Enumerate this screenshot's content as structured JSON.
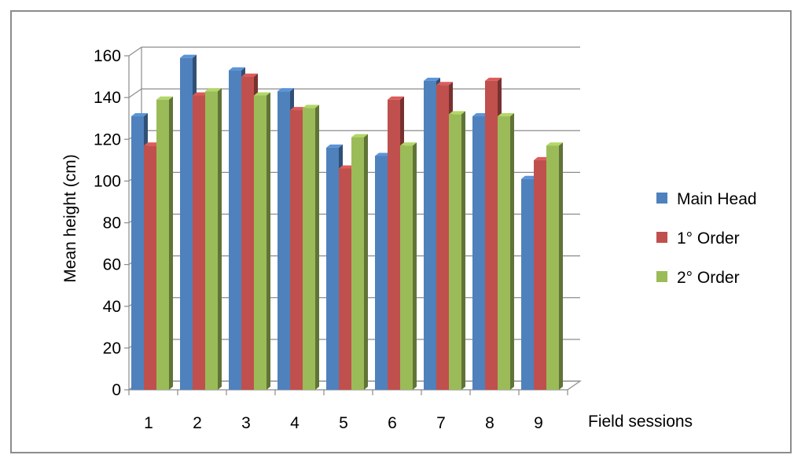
{
  "chart_data": {
    "type": "bar",
    "style": "3d-clustered-column",
    "title": "",
    "xlabel": "Field sessions",
    "ylabel": "Mean height (cm)",
    "ylim": [
      0,
      160
    ],
    "yticks": [
      0,
      20,
      40,
      60,
      80,
      100,
      120,
      140,
      160
    ],
    "grid": true,
    "legend_position": "right",
    "categories": [
      "1",
      "2",
      "3",
      "4",
      "5",
      "6",
      "7",
      "8",
      "9"
    ],
    "series": [
      {
        "name": "Main Head",
        "color": "#4f81bd",
        "values": [
          131,
          159,
          153,
          143,
          116,
          112,
          148,
          131,
          101
        ]
      },
      {
        "name": "1° Order",
        "color": "#c0504d",
        "values": [
          117,
          141,
          150,
          134,
          106,
          139,
          146,
          148,
          110
        ]
      },
      {
        "name": "2° Order",
        "color": "#9bbb59",
        "values": [
          139,
          143,
          141,
          135,
          121,
          117,
          132,
          131,
          117
        ]
      }
    ]
  }
}
